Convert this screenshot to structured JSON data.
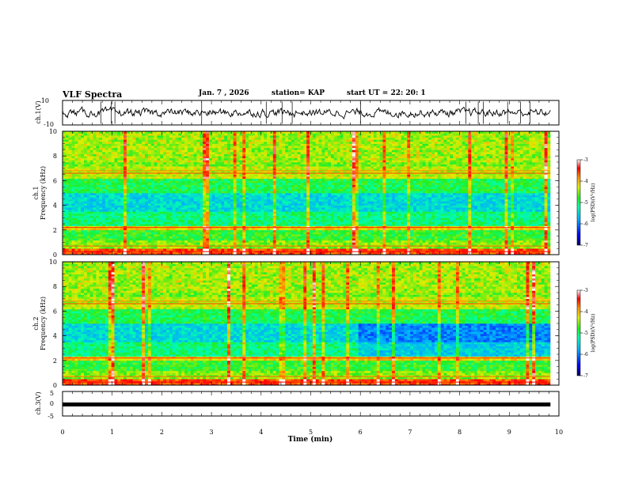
{
  "header": {
    "title": "VLF Spectra",
    "date": "Jan. 7 , 2026",
    "station": "station= KAP",
    "start": "start UT = 22: 20: 1"
  },
  "chart_data": [
    {
      "type": "line",
      "panel": "ch1-waveform",
      "ylabel": "ch.1(V)",
      "ylim": [
        -10,
        10
      ],
      "ytick_labels": [
        "-10",
        "10"
      ],
      "xlim": [
        0,
        10
      ],
      "description_values": "noisy signal roughly between -4 and +4 V"
    },
    {
      "type": "heatmap",
      "panel": "ch1-spectrogram",
      "ylabel": "ch.1 Frequency (kHz)",
      "ylim": [
        0,
        10
      ],
      "ytick_labels": [
        "0",
        "2",
        "4",
        "6",
        "8",
        "10"
      ],
      "xlim": [
        0,
        9.83
      ],
      "colorbar": {
        "label": "log(PSD)(V²/Hz)",
        "range": [
          -7,
          -3
        ],
        "tick_labels": [
          "-3",
          "-4",
          "-5",
          "-6",
          "-7"
        ]
      }
    },
    {
      "type": "heatmap",
      "panel": "ch2-spectrogram",
      "ylabel": "ch.2 Frequency (kHz)",
      "ylim": [
        0,
        10
      ],
      "ytick_labels": [
        "0",
        "2",
        "4",
        "6",
        "8",
        "10"
      ],
      "xlim": [
        0,
        9.83
      ],
      "colorbar": {
        "label": "log(PSD)(V²/Hz)",
        "range": [
          -7,
          -3
        ],
        "tick_labels": [
          "-3",
          "-4",
          "-5",
          "-6",
          "-7"
        ]
      }
    },
    {
      "type": "line",
      "panel": "ch3-waveform",
      "ylabel": "ch.3(V)",
      "ylim": [
        -5,
        5
      ],
      "ytick_labels": [
        "-5",
        "0",
        "5"
      ],
      "constant_value": -0.3,
      "xlim": [
        0,
        10
      ]
    }
  ],
  "xaxis": {
    "label": "Time (min)",
    "range": [
      0,
      10
    ],
    "tick_labels": [
      "0",
      "1",
      "2",
      "3",
      "4",
      "5",
      "6",
      "7",
      "8",
      "9",
      "10"
    ]
  },
  "colors": {
    "scale": [
      "#000080",
      "#0000ff",
      "#00aaff",
      "#00ffcc",
      "#22ee22",
      "#bbee00",
      "#ffff00",
      "#ff9900",
      "#ff0000",
      "#ffffff"
    ]
  }
}
